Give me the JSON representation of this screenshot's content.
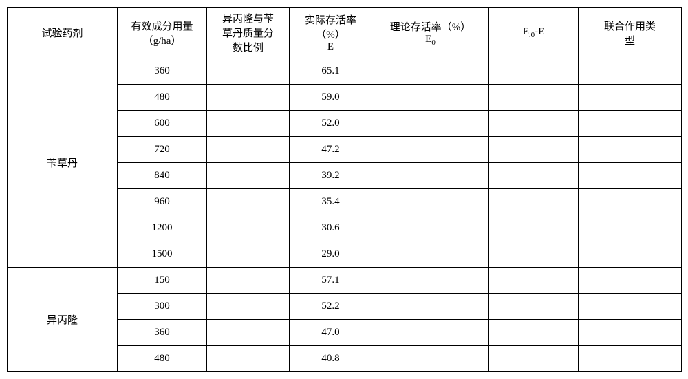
{
  "table": {
    "headers": {
      "col1": "试验药剂",
      "col2_line1": "有效成分用量",
      "col2_line2": "（g/ha）",
      "col3_line1": "异丙隆与苄",
      "col3_line2": "草丹质量分",
      "col3_line3": "数比例",
      "col4_line1": "实际存活率",
      "col4_line2": "（%）",
      "col4_line3": "E",
      "col5_line1": "理论存活率（%）",
      "col5_line2": "E",
      "col5_sub": "0",
      "col6_part1": "E",
      "col6_sub": ".0",
      "col6_part2": "-E",
      "col7_line1": "联合作用类",
      "col7_line2": "型"
    },
    "groups": [
      {
        "name": "苄草丹",
        "rows": [
          {
            "dosage": "360",
            "actual": "65.1"
          },
          {
            "dosage": "480",
            "actual": "59.0"
          },
          {
            "dosage": "600",
            "actual": "52.0"
          },
          {
            "dosage": "720",
            "actual": "47.2"
          },
          {
            "dosage": "840",
            "actual": "39.2"
          },
          {
            "dosage": "960",
            "actual": "35.4"
          },
          {
            "dosage": "1200",
            "actual": "30.6"
          },
          {
            "dosage": "1500",
            "actual": "29.0"
          }
        ]
      },
      {
        "name": "异丙隆",
        "rows": [
          {
            "dosage": "150",
            "actual": "57.1"
          },
          {
            "dosage": "300",
            "actual": "52.2"
          },
          {
            "dosage": "360",
            "actual": "47.0"
          },
          {
            "dosage": "480",
            "actual": "40.8"
          }
        ]
      }
    ]
  }
}
